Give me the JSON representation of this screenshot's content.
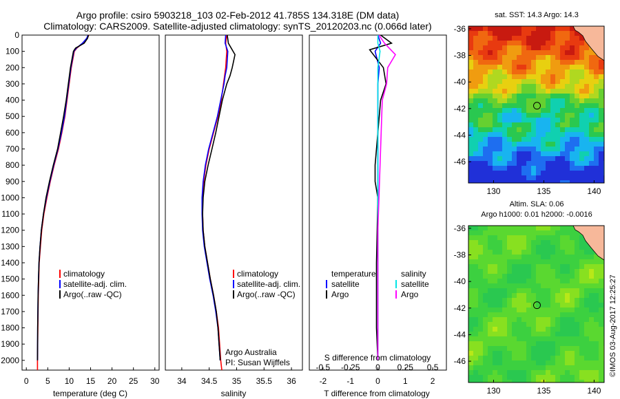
{
  "header": {
    "line1": "Argo profile: csiro 5903218_103 02-Feb-2012 41.785S 134.318E (DM data)",
    "line2": "Climatology: CARS2009. Satellite-adjusted climatology: synTS_20120203.nc (0.066d later)"
  },
  "colors": {
    "climatology": "#ff0000",
    "satellite": "#0000ff",
    "argo": "#000000",
    "t_satellite": "#0000ff",
    "t_argo": "#000000",
    "s_satellite": "#00e5e5",
    "s_argo": "#ff00ff",
    "land": "#f7b89a"
  },
  "depth_axis": {
    "ticks": [
      0,
      100,
      200,
      300,
      400,
      500,
      600,
      700,
      800,
      900,
      1000,
      1100,
      1200,
      1300,
      1400,
      1500,
      1600,
      1700,
      1800,
      1900,
      2000
    ],
    "range": [
      0,
      2060
    ]
  },
  "legend_profile": [
    "climatology",
    "satellite-adj. clim.",
    "Argo(..raw -QC)"
  ],
  "credits": {
    "org": "Argo Australia",
    "pi": "PI: Susan Wijffels"
  },
  "diff_legend": {
    "temperature": "temperature",
    "salinity": "salinity",
    "t_items": [
      "satellite",
      "Argo"
    ],
    "s_items": [
      "satellite",
      "Argo"
    ]
  },
  "maps": {
    "sst": {
      "title": "sat. SST: 14.3 Argo: 14.3",
      "yticks": [
        -36,
        -38,
        -40,
        -42,
        -44,
        -46
      ],
      "xticks": [
        130,
        135,
        140
      ],
      "lon_range": [
        127.5,
        141
      ],
      "lat_range": [
        -47.6,
        -35.8
      ],
      "argo_pos": [
        134.318,
        -41.785
      ]
    },
    "sla": {
      "title1": "Altim. SLA: 0.06",
      "title2": "Argo h1000: 0.01 h2000: -0.0016",
      "yticks": [
        -36,
        -38,
        -40,
        -42,
        -44,
        -46
      ],
      "xticks": [
        130,
        135,
        140
      ],
      "lon_range": [
        127.5,
        141
      ],
      "lat_range": [
        -47.6,
        -35.8
      ],
      "argo_pos": [
        134.318,
        -41.785
      ]
    }
  },
  "watermark": "©IMOS 03-Aug-2017 12:25:27",
  "chart_data": [
    {
      "type": "line",
      "xlabel": "temperature (deg C)",
      "xlim": [
        -1,
        31
      ],
      "xticks": [
        0,
        5,
        10,
        15,
        20,
        25,
        30
      ],
      "ylim": [
        2060,
        0
      ],
      "series": [
        {
          "name": "climatology",
          "x": [
            14.6,
            14.2,
            13.2,
            11.8,
            11.2,
            10.5,
            10.0,
            9.5,
            9.0,
            8.3,
            7.5,
            6.5,
            5.6,
            4.8,
            4.1,
            3.6,
            3.3,
            3.0,
            2.9,
            2.8,
            2.7,
            2.6,
            2.6
          ],
          "y": [
            0,
            20,
            50,
            80,
            100,
            200,
            300,
            400,
            500,
            600,
            700,
            800,
            900,
            1000,
            1100,
            1200,
            1300,
            1400,
            1500,
            1600,
            1800,
            2000,
            2060
          ]
        },
        {
          "name": "satellite-adj. clim.",
          "x": [
            14.4,
            14.1,
            13.1,
            11.7,
            11.1,
            10.4,
            9.9,
            9.4,
            8.9,
            8.2,
            7.4,
            6.4,
            5.5,
            4.7,
            4.0,
            3.5,
            3.2,
            2.95,
            2.85,
            2.75,
            2.65,
            2.6
          ],
          "y": [
            0,
            20,
            50,
            80,
            100,
            200,
            300,
            400,
            500,
            600,
            700,
            800,
            900,
            1000,
            1100,
            1200,
            1300,
            1400,
            1500,
            1600,
            1800,
            2000
          ]
        },
        {
          "name": "Argo(..raw -QC)",
          "x": [
            14.5,
            14.3,
            13.5,
            11.5,
            11.0,
            10.3,
            9.8,
            9.3,
            8.7,
            8.0,
            7.3,
            6.3,
            5.4,
            4.6,
            4.0,
            3.5,
            3.2,
            2.95,
            2.85,
            2.75,
            2.65,
            2.6
          ],
          "y": [
            0,
            20,
            50,
            80,
            100,
            200,
            300,
            400,
            500,
            600,
            700,
            800,
            900,
            1000,
            1100,
            1200,
            1300,
            1400,
            1500,
            1600,
            1800,
            2000
          ]
        }
      ]
    },
    {
      "type": "line",
      "xlabel": "salinity",
      "xlim": [
        33.7,
        36.2
      ],
      "xticks": [
        34,
        34.5,
        35,
        35.5,
        36
      ],
      "ylim": [
        2060,
        0
      ],
      "series": [
        {
          "name": "climatology",
          "x": [
            34.82,
            34.8,
            34.82,
            34.8,
            34.78,
            34.76,
            34.72,
            34.66,
            34.58,
            34.5,
            34.44,
            34.4,
            34.38,
            34.38,
            34.39,
            34.42,
            34.47,
            34.52,
            34.58,
            34.63,
            34.67,
            34.71,
            34.73
          ],
          "y": [
            0,
            50,
            100,
            200,
            250,
            300,
            400,
            500,
            600,
            700,
            800,
            900,
            1000,
            1100,
            1200,
            1300,
            1400,
            1500,
            1600,
            1700,
            1800,
            2000,
            2060
          ]
        },
        {
          "name": "satellite-adj. clim.",
          "x": [
            34.8,
            34.79,
            34.84,
            34.82,
            34.79,
            34.77,
            34.71,
            34.65,
            34.57,
            34.49,
            34.43,
            34.39,
            34.37,
            34.37,
            34.38,
            34.41,
            34.46,
            34.51,
            34.57,
            34.62,
            34.66,
            34.7
          ],
          "y": [
            0,
            50,
            100,
            200,
            250,
            300,
            400,
            500,
            600,
            700,
            800,
            900,
            1000,
            1100,
            1200,
            1300,
            1400,
            1500,
            1600,
            1700,
            1800,
            2000
          ]
        },
        {
          "name": "Argo(..raw -QC)",
          "x": [
            34.83,
            34.85,
            34.97,
            34.92,
            34.88,
            34.82,
            34.78,
            34.74,
            34.68,
            34.62,
            34.55,
            34.48,
            34.42,
            34.39,
            34.38,
            34.39,
            34.42,
            34.47,
            34.52,
            34.58,
            34.63,
            34.66,
            34.7
          ],
          "y": [
            0,
            50,
            120,
            200,
            250,
            300,
            350,
            400,
            500,
            600,
            700,
            800,
            900,
            1000,
            1100,
            1200,
            1300,
            1400,
            1500,
            1600,
            1700,
            1800,
            2000
          ]
        }
      ]
    },
    {
      "type": "line",
      "xlabel": "T difference from climatology",
      "xlabel_top": "S difference from climatology",
      "xlim": [
        -2.5,
        2.5
      ],
      "xticks": [
        -2,
        -1,
        0,
        1,
        2
      ],
      "xticks_top": [
        -0.5,
        -0.25,
        0,
        0.25,
        0.5
      ],
      "ylim": [
        2060,
        0
      ],
      "series": [
        {
          "name": "temperature satellite",
          "x": [
            0.0,
            0.1,
            -0.1,
            0.05,
            0.0,
            0.0,
            0.0,
            0.0,
            0.0,
            0.0,
            0.0,
            0.0
          ],
          "y": [
            0,
            50,
            100,
            200,
            300,
            400,
            600,
            800,
            1000,
            1400,
            1800,
            2000
          ]
        },
        {
          "name": "temperature Argo",
          "x": [
            0.1,
            0.5,
            -0.3,
            0.2,
            0.3,
            0.1,
            0.0,
            -0.1,
            -0.1,
            0.0,
            -0.05,
            -0.05,
            0.0
          ],
          "y": [
            0,
            50,
            90,
            200,
            300,
            400,
            600,
            800,
            900,
            1000,
            1400,
            1800,
            2000
          ]
        },
        {
          "name": "salinity satellite",
          "x": [
            0.0,
            0.0,
            0.02,
            0.0,
            0.0,
            0.0,
            0.0,
            0.0,
            0.0,
            0.0
          ],
          "y": [
            0,
            50,
            100,
            200,
            300,
            500,
            800,
            1200,
            1600,
            2000
          ]
        },
        {
          "name": "salinity Argo",
          "x": [
            0.01,
            0.06,
            0.16,
            0.09,
            0.08,
            0.04,
            0.03,
            0.02,
            0.0,
            0.0,
            0.0
          ],
          "y": [
            0,
            50,
            120,
            200,
            300,
            400,
            600,
            800,
            1200,
            1600,
            2000
          ]
        }
      ]
    }
  ]
}
